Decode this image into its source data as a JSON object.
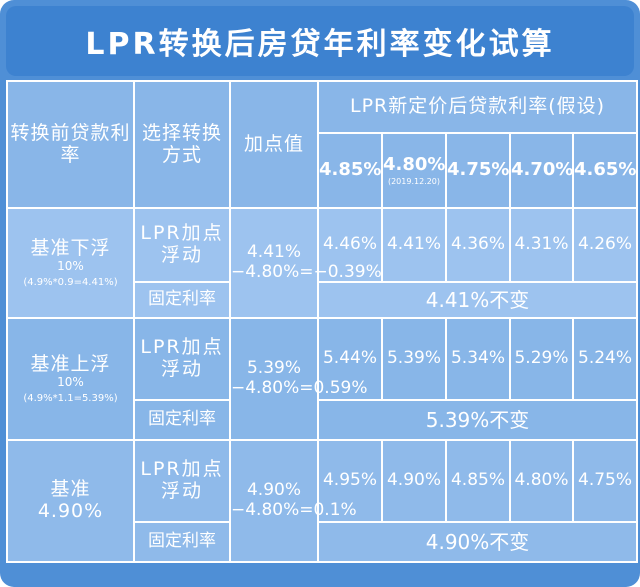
{
  "title": "LPR转换后房贷年利率变化试算",
  "header": {
    "col1": "转换前贷款利率",
    "col2": "选择转换方式",
    "col3": "加点值",
    "group": "LPR新定价后贷款利率(假设)",
    "lpr": [
      {
        "rate": "4.85%",
        "note": ""
      },
      {
        "rate": "4.80%",
        "note": "(2019.12.20)"
      },
      {
        "rate": "4.75%",
        "note": ""
      },
      {
        "rate": "4.70%",
        "note": ""
      },
      {
        "rate": "4.65%",
        "note": ""
      }
    ]
  },
  "groups": [
    {
      "name": "基准下浮",
      "pct": "10%",
      "formula": "(4.9%*0.9=4.41%)",
      "method_float": "LPR加点浮动",
      "method_fixed": "固定利率",
      "calc": "4.41%−4.80%=−0.39%",
      "rates": [
        "4.46%",
        "4.41%",
        "4.36%",
        "4.31%",
        "4.26%"
      ],
      "unchanged": "4.41%不变"
    },
    {
      "name": "基准上浮",
      "pct": "10%",
      "formula": "(4.9%*1.1=5.39%)",
      "method_float": "LPR加点浮动",
      "method_fixed": "固定利率",
      "calc": "5.39%−4.80%=0.59%",
      "rates": [
        "5.44%",
        "5.39%",
        "5.34%",
        "5.29%",
        "5.24%"
      ],
      "unchanged": "5.39%不变"
    },
    {
      "name": "基准",
      "pct": "4.90%",
      "formula": "",
      "method_float": "LPR加点浮动",
      "method_fixed": "固定利率",
      "calc": "4.90%−4.80%=0.1%",
      "rates": [
        "4.95%",
        "4.90%",
        "4.85%",
        "4.80%",
        "4.75%"
      ],
      "unchanged": "4.90%不变"
    }
  ]
}
